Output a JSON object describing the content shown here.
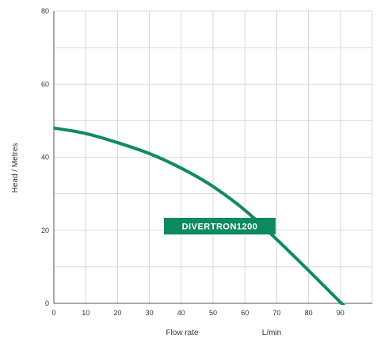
{
  "chart_data": {
    "type": "line",
    "title": "",
    "xlabel": "Flow rate",
    "xunit": "L/min",
    "ylabel": "Head / Metres",
    "xlim": [
      0,
      100
    ],
    "ylim": [
      0,
      80
    ],
    "x_ticks": [
      0,
      10,
      20,
      30,
      40,
      50,
      60,
      70,
      80,
      90
    ],
    "y_ticks": [
      0,
      20,
      40,
      60,
      80
    ],
    "grid": true,
    "series": [
      {
        "name": "DIVERTRON1200",
        "color": "#0f8a5f",
        "x": [
          0,
          10,
          20,
          30,
          40,
          50,
          60,
          70,
          80,
          90,
          94
        ],
        "y": [
          48,
          46.5,
          44,
          41,
          37,
          32,
          25.5,
          17.5,
          9,
          0.3,
          -3
        ]
      }
    ]
  }
}
